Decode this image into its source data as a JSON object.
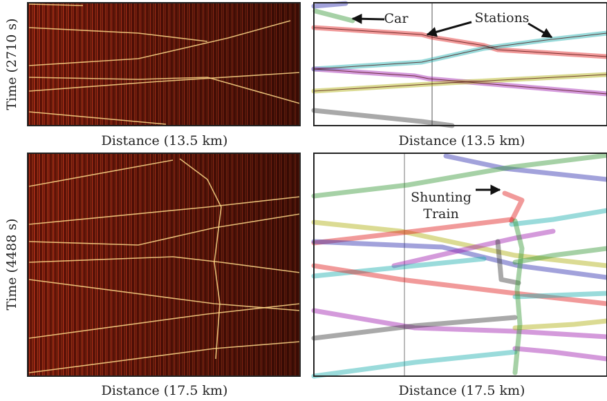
{
  "panels": [
    {
      "y_label": "Time (2710 s)",
      "x_label": "Distance (13.5 km)"
    },
    {
      "x_label": "Distance (13.5 km)",
      "annotations": [
        "Car",
        "Stations"
      ]
    },
    {
      "y_label": "Time (4488 s)",
      "x_label": "Distance (17.5 km)"
    },
    {
      "x_label": "Distance (17.5 km)",
      "annotations": [
        "Shunting",
        "Train"
      ]
    }
  ]
}
